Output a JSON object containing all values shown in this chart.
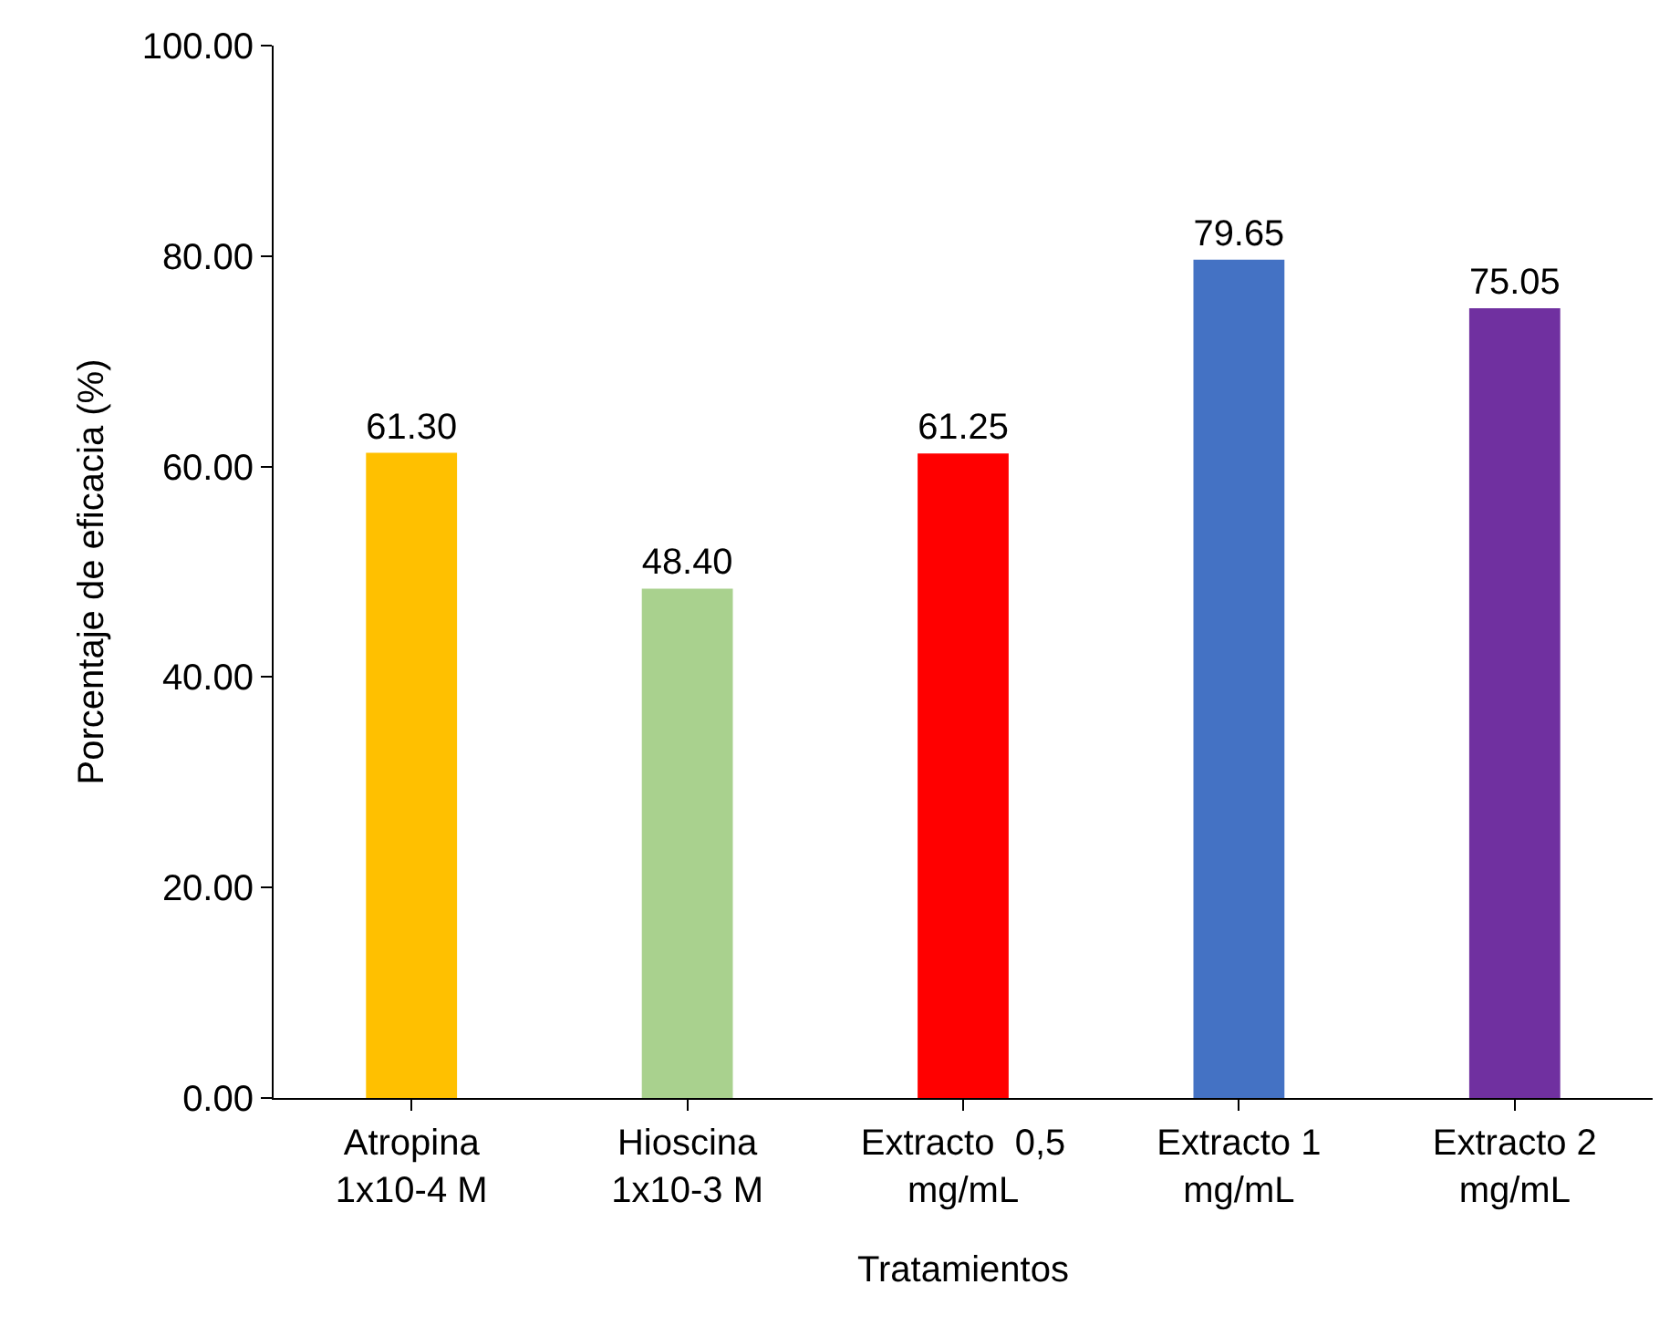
{
  "chart_data": {
    "type": "bar",
    "xlabel": "Tratamientos",
    "ylabel": "Porcentaje de eficacia (%)",
    "categories": [
      "Atropina\n1x10-4 M",
      "Hioscina\n1x10-3 M",
      "Extracto  0,5\nmg/mL",
      "Extracto 1\nmg/mL",
      "Extracto 2\nmg/mL"
    ],
    "values": [
      61.3,
      48.4,
      61.25,
      79.65,
      75.05
    ],
    "colors": [
      "#ffc000",
      "#a9d18e",
      "#ff0000",
      "#4472c4",
      "#7030a0"
    ],
    "value_labels": [
      "61.30",
      "48.40",
      "61.25",
      "79.65",
      "75.05"
    ],
    "ylim": [
      0,
      100
    ],
    "yticks": [
      {
        "value": 0,
        "label": "0.00"
      },
      {
        "value": 20,
        "label": "20.00"
      },
      {
        "value": 40,
        "label": "40.00"
      },
      {
        "value": 60,
        "label": "60.00"
      },
      {
        "value": 80,
        "label": "80.00"
      },
      {
        "value": 100,
        "label": "100.00"
      }
    ],
    "grid": false
  }
}
